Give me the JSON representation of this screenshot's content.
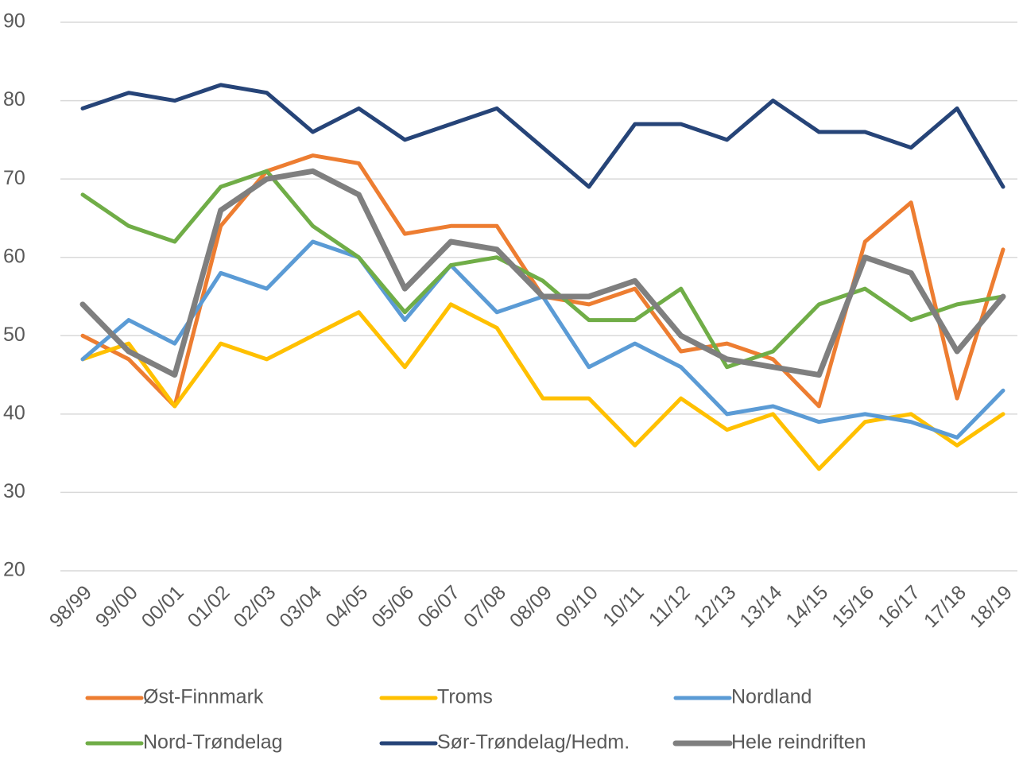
{
  "chart_data": {
    "type": "line",
    "categories": [
      "98/99",
      "99/00",
      "00/01",
      "01/02",
      "02/03",
      "03/04",
      "04/05",
      "05/06",
      "06/07",
      "07/08",
      "08/09",
      "09/10",
      "10/11",
      "11/12",
      "12/13",
      "13/14",
      "14/15",
      "15/16",
      "16/17",
      "17/18",
      "18/19"
    ],
    "series": [
      {
        "name": "Øst-Finnmark",
        "color": "#ed7d31",
        "values": [
          50,
          47,
          41,
          64,
          71,
          73,
          72,
          63,
          64,
          64,
          55,
          54,
          56,
          48,
          49,
          47,
          41,
          62,
          67,
          42,
          61
        ]
      },
      {
        "name": "Troms",
        "color": "#ffc000",
        "values": [
          47,
          49,
          41,
          49,
          47,
          50,
          53,
          46,
          54,
          51,
          42,
          42,
          36,
          42,
          38,
          40,
          33,
          39,
          40,
          36,
          40
        ]
      },
      {
        "name": "Nordland",
        "color": "#5b9bd5",
        "values": [
          47,
          52,
          49,
          58,
          56,
          62,
          60,
          52,
          59,
          53,
          55,
          46,
          49,
          46,
          40,
          41,
          39,
          40,
          39,
          37,
          43
        ]
      },
      {
        "name": "Nord-Trøndelag",
        "color": "#70ad47",
        "values": [
          68,
          64,
          62,
          69,
          71,
          64,
          60,
          53,
          59,
          60,
          57,
          52,
          52,
          56,
          46,
          48,
          54,
          56,
          52,
          54,
          55
        ]
      },
      {
        "name": "Sør-Trøndelag/Hedm.",
        "color": "#264478",
        "values": [
          79,
          81,
          80,
          82,
          81,
          76,
          79,
          75,
          77,
          79,
          74,
          69,
          77,
          77,
          75,
          80,
          76,
          76,
          74,
          79,
          69
        ]
      },
      {
        "name": "Hele reindriften",
        "color": "#7f7f7f",
        "values": [
          54,
          48,
          45,
          66,
          70,
          71,
          68,
          56,
          62,
          61,
          55,
          55,
          57,
          50,
          47,
          46,
          45,
          60,
          58,
          48,
          55
        ]
      }
    ],
    "ylim": [
      20,
      90
    ],
    "yticks": [
      20,
      30,
      40,
      50,
      60,
      70,
      80,
      90
    ],
    "grid": true,
    "legend": "bottom"
  }
}
